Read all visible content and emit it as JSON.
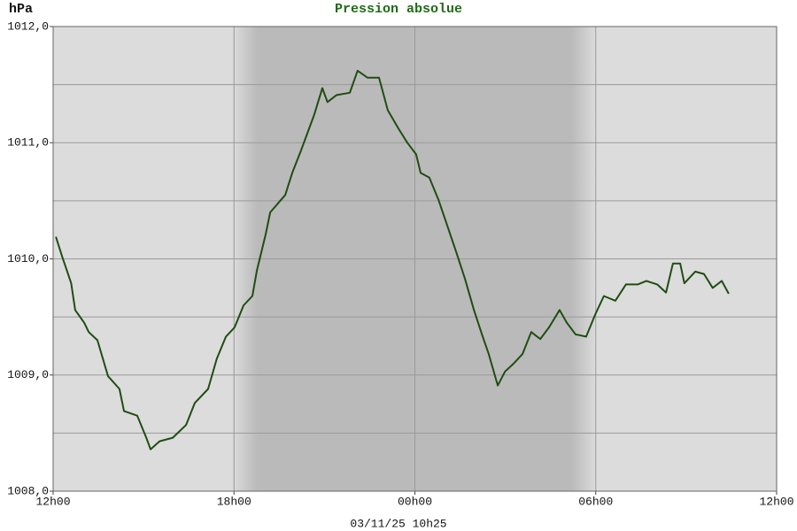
{
  "chart_data": {
    "type": "line",
    "title": "Pression absolue",
    "ylabel": "hPa",
    "xlabel": "03/11/25 10h25",
    "xlim": [
      0,
      24
    ],
    "xticks": [
      {
        "value": 0,
        "label": "12h00"
      },
      {
        "value": 6,
        "label": "18h00"
      },
      {
        "value": 12,
        "label": "00h00"
      },
      {
        "value": 18,
        "label": "06h00"
      },
      {
        "value": 24,
        "label": "12h00"
      }
    ],
    "ylim": [
      1008,
      1012
    ],
    "yticks": [
      {
        "value": 1008,
        "label": "1008,0"
      },
      {
        "value": 1009,
        "label": "1009,0"
      },
      {
        "value": 1010,
        "label": "1010,0"
      },
      {
        "value": 1011,
        "label": "1011,0"
      },
      {
        "value": 1012,
        "label": "1012,0"
      }
    ],
    "grid": true,
    "series": [
      {
        "color": "#1f4d12",
        "x": [
          0.09,
          0.3,
          0.6,
          0.73,
          1.03,
          1.18,
          1.47,
          1.82,
          2.2,
          2.35,
          2.79,
          3.09,
          3.23,
          3.53,
          3.97,
          4.41,
          4.7,
          5.14,
          5.43,
          5.73,
          6.02,
          6.32,
          6.61,
          6.76,
          7.05,
          7.2,
          7.5,
          7.7,
          7.93,
          8.22,
          8.46,
          8.66,
          8.93,
          9.1,
          9.4,
          9.84,
          10.1,
          10.43,
          10.81,
          11.1,
          11.46,
          11.75,
          12.04,
          12.19,
          12.48,
          12.78,
          13.07,
          13.37,
          13.66,
          13.96,
          14.25,
          14.45,
          14.75,
          14.99,
          15.28,
          15.57,
          15.86,
          16.16,
          16.45,
          16.8,
          17.04,
          17.33,
          17.68,
          17.98,
          18.27,
          18.65,
          19,
          19.39,
          19.68,
          20.04,
          20.33,
          20.56,
          20.8,
          20.94,
          21.3,
          21.59,
          21.88,
          22.18,
          22.41
        ],
        "values": [
          1010.19,
          1010.02,
          1009.79,
          1009.56,
          1009.45,
          1009.37,
          1009.3,
          1008.99,
          1008.88,
          1008.69,
          1008.65,
          1008.46,
          1008.36,
          1008.43,
          1008.46,
          1008.57,
          1008.76,
          1008.88,
          1009.14,
          1009.33,
          1009.41,
          1009.6,
          1009.68,
          1009.9,
          1010.21,
          1010.4,
          1010.49,
          1010.55,
          1010.74,
          1010.93,
          1011.1,
          1011.24,
          1011.47,
          1011.35,
          1011.41,
          1011.43,
          1011.62,
          1011.56,
          1011.56,
          1011.28,
          1011.12,
          1011,
          1010.9,
          1010.74,
          1010.7,
          1010.51,
          1010.29,
          1010.06,
          1009.83,
          1009.56,
          1009.33,
          1009.18,
          1008.91,
          1009.03,
          1009.1,
          1009.18,
          1009.37,
          1009.31,
          1009.41,
          1009.56,
          1009.45,
          1009.35,
          1009.33,
          1009.52,
          1009.68,
          1009.64,
          1009.78,
          1009.78,
          1009.81,
          1009.78,
          1009.71,
          1009.96,
          1009.96,
          1009.79,
          1009.89,
          1009.87,
          1009.75,
          1009.81,
          1009.7
        ]
      }
    ]
  }
}
